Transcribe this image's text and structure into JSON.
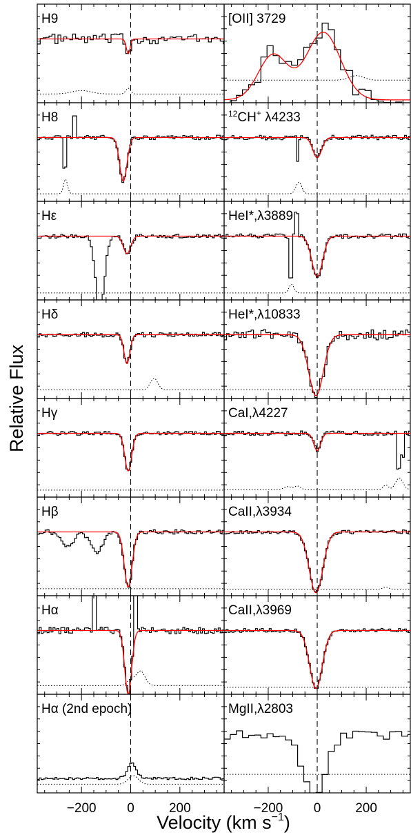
{
  "figure": {
    "ylabel": "Relative Flux",
    "xlabel": "Velocity (km s",
    "xlabel_sup": "−1",
    "xlabel_close": ")"
  },
  "chart_data": {
    "type": "line",
    "layout": "8 rows x 2 columns of stacked spectral panels sharing the velocity axis",
    "xlim": [
      -380,
      380
    ],
    "xticks": [
      -200,
      0,
      200
    ],
    "xtick_labels": [
      "−200",
      "0",
      "200"
    ],
    "grid": false,
    "zero_velocity_marker": "vertical dashed line at 0 km/s",
    "colors": {
      "data": "#000000",
      "fit": "#ff0000",
      "error": "#000000"
    },
    "panels": [
      {
        "key": "h9",
        "label": "H9",
        "sub": "",
        "rest": "",
        "ylim": [
          -0.1,
          1.6
        ],
        "continuum": 1.0,
        "absorption": [
          {
            "v": -10,
            "depth": 0.25,
            "sigma": 8
          }
        ],
        "fit": true,
        "error_level": 0.05,
        "error_bumps": [
          {
            "v": -200,
            "h": 0.06,
            "s": 40
          },
          {
            "v": -10,
            "h": 0.1,
            "s": 10
          }
        ],
        "noise": 0.18,
        "binw": 12
      },
      {
        "key": "oii",
        "label": "[OII] 3729",
        "sub": "",
        "rest": "",
        "ylim": [
          -0.05,
          1.7
        ],
        "continuum": 0.0,
        "emission": [
          {
            "v": -180,
            "h": 0.8,
            "sigma": 60
          },
          {
            "v": 25,
            "h": 1.2,
            "sigma": 70
          }
        ],
        "fit": true,
        "error_level": 0.35,
        "error_bumps": [
          {
            "v": 160,
            "h": 0.08,
            "s": 30
          }
        ],
        "noise": 0.35,
        "binw": 25
      },
      {
        "key": "h8",
        "label": "H8",
        "sub": "",
        "rest": "",
        "ylim": [
          -0.1,
          1.6
        ],
        "continuum": 1.0,
        "absorption": [
          {
            "v": -30,
            "depth": 0.75,
            "sigma": 15
          }
        ],
        "fit": true,
        "error_level": 0.03,
        "error_bumps": [
          {
            "v": -265,
            "h": 0.25,
            "s": 8
          }
        ],
        "spikes": [
          {
            "v": -265,
            "dv": -0.5
          },
          {
            "v": -230,
            "dv": 0.35
          }
        ],
        "noise": 0.08,
        "binw": 8
      },
      {
        "key": "ch",
        "label": "CH",
        "sup": "12",
        "sup2": "+",
        "rest": " λ4233",
        "ylim": [
          -0.1,
          1.6
        ],
        "continuum": 1.0,
        "absorption": [
          {
            "v": 0,
            "depth": 0.35,
            "sigma": 18
          }
        ],
        "fit": true,
        "error_level": 0.03,
        "error_bumps": [
          {
            "v": -75,
            "h": 0.2,
            "s": 12
          }
        ],
        "spikes": [
          {
            "v": -80,
            "dv": -0.4
          }
        ],
        "noise": 0.08,
        "binw": 8
      },
      {
        "key": "heps",
        "label": "Hε",
        "sub": "",
        "rest": "",
        "ylim": [
          -0.1,
          1.6
        ],
        "continuum": 1.0,
        "absorption": [
          {
            "v": -15,
            "depth": 0.3,
            "sigma": 15
          }
        ],
        "fit": true,
        "error_level": 0.02,
        "error_bumps": [],
        "data_absorption": [
          {
            "v": -125,
            "depth": 1.3,
            "sigma": 18
          }
        ],
        "noise": 0.07,
        "binw": 8
      },
      {
        "key": "he3889",
        "label": "HeI*,λ3889",
        "sub": "",
        "rest": "",
        "ylim": [
          -0.1,
          1.6
        ],
        "continuum": 1.0,
        "absorption": [
          {
            "v": 0,
            "depth": 0.7,
            "sigma": 22
          }
        ],
        "fit": true,
        "error_level": 0.02,
        "error_bumps": [
          {
            "v": -105,
            "h": 0.15,
            "s": 10
          }
        ],
        "spikes": [
          {
            "v": -105,
            "dv": -0.7
          },
          {
            "v": -85,
            "dv": 0.4
          }
        ],
        "noise": 0.08,
        "binw": 8
      },
      {
        "key": "hdel",
        "label": "Hδ",
        "sub": "",
        "rest": "",
        "ylim": [
          -0.1,
          1.6
        ],
        "continuum": 1.0,
        "absorption": [
          {
            "v": -15,
            "depth": 0.5,
            "sigma": 12
          }
        ],
        "fit": true,
        "error_level": 0.05,
        "error_bumps": [
          {
            "v": 95,
            "h": 0.2,
            "s": 15
          }
        ],
        "noise": 0.08,
        "binw": 8
      },
      {
        "key": "he10833",
        "label": "HeI*,λ10833",
        "sub": "",
        "rest": "",
        "ylim": [
          -0.1,
          1.6
        ],
        "continuum": 1.0,
        "absorption": [
          {
            "v": -5,
            "depth": 1.05,
            "sigma": 30
          }
        ],
        "fit": true,
        "error_level": 0.05,
        "error_bumps": [],
        "noise": 0.18,
        "binw": 10
      },
      {
        "key": "hgam",
        "label": "Hγ",
        "sub": "",
        "rest": "",
        "ylim": [
          -0.1,
          1.6
        ],
        "continuum": 1.0,
        "absorption": [
          {
            "v": -10,
            "depth": 0.65,
            "sigma": 14
          }
        ],
        "fit": true,
        "error_level": 0.02,
        "error_bumps": [],
        "noise": 0.07,
        "binw": 8
      },
      {
        "key": "cai",
        "label": "CaI,λ4227",
        "sub": "",
        "rest": "",
        "ylim": [
          -0.1,
          1.6
        ],
        "continuum": 1.0,
        "absorption": [
          {
            "v": 0,
            "depth": 0.3,
            "sigma": 14
          }
        ],
        "fit": true,
        "error_level": 0.03,
        "error_bumps": [
          {
            "v": -120,
            "h": 0.05,
            "s": 15
          },
          {
            "v": -80,
            "h": 0.06,
            "s": 12
          },
          {
            "v": 280,
            "h": 0.08,
            "s": 10
          },
          {
            "v": 335,
            "h": 0.2,
            "s": 15
          }
        ],
        "spikes": [
          {
            "v": 330,
            "dv": -0.6
          },
          {
            "v": 350,
            "dv": -0.4
          }
        ],
        "noise": 0.08,
        "binw": 8
      },
      {
        "key": "hbet",
        "label": "Hβ",
        "sub": "",
        "rest": "",
        "ylim": [
          -0.1,
          1.6
        ],
        "continuum": 1.0,
        "absorption": [
          {
            "v": -10,
            "depth": 0.95,
            "sigma": 16
          }
        ],
        "fit": true,
        "error_level": 0.02,
        "error_bumps": [],
        "data_dips": [
          {
            "v": -255,
            "depth": 0.25,
            "s": 25
          },
          {
            "v": -140,
            "depth": 0.35,
            "s": 25
          }
        ],
        "noise": 0.08,
        "binw": 8
      },
      {
        "key": "caii3934",
        "label": "CaII,λ3934",
        "sub": "",
        "rest": "",
        "ylim": [
          -0.1,
          1.6
        ],
        "continuum": 1.0,
        "absorption": [
          {
            "v": -5,
            "depth": 1.05,
            "sigma": 28
          }
        ],
        "fit": true,
        "error_level": 0.01,
        "error_bumps": [
          {
            "v": 280,
            "h": 0.04,
            "s": 12
          }
        ],
        "noise": 0.07,
        "binw": 8
      },
      {
        "key": "halp",
        "label": "Hα",
        "sub": "",
        "rest": "",
        "ylim": [
          -0.1,
          1.6
        ],
        "continuum": 1.0,
        "absorption": [
          {
            "v": -10,
            "depth": 1.1,
            "sigma": 14
          }
        ],
        "fit": true,
        "error_level": 0.05,
        "error_bumps": [
          {
            "v": 0,
            "h": 0.1,
            "s": 15
          },
          {
            "v": 40,
            "h": 0.25,
            "s": 18
          }
        ],
        "spikes": [
          {
            "v": -150,
            "dv": 0.7
          },
          {
            "v": 20,
            "dv": 1.2
          }
        ],
        "noise": 0.12,
        "binw": 8
      },
      {
        "key": "caii3969",
        "label": "CaII,λ3969",
        "sub": "",
        "rest": "",
        "ylim": [
          -0.1,
          1.6
        ],
        "continuum": 1.0,
        "absorption": [
          {
            "v": -5,
            "depth": 1.0,
            "sigma": 26
          }
        ],
        "fit": true,
        "error_level": 0.02,
        "error_bumps": [],
        "noise": 0.07,
        "binw": 8
      },
      {
        "key": "halp2",
        "label": "Hα (2nd epoch)",
        "sub": "",
        "rest": "",
        "ylim": [
          -0.1,
          1.6
        ],
        "continuum": 0.15,
        "emission": [
          {
            "v": 5,
            "h": 0.25,
            "sigma": 18
          }
        ],
        "fit": false,
        "error_level": 0.05,
        "error_bumps": [
          {
            "v": 10,
            "h": 0.15,
            "s": 20
          }
        ],
        "noise": 0.04,
        "binw": 8
      },
      {
        "key": "mgii",
        "label": "MgII,λ2803",
        "sub": "",
        "rest": "",
        "ylim": [
          -0.1,
          1.6
        ],
        "continuum": 0.9,
        "absorption": [
          {
            "v": -10,
            "depth": 1.1,
            "sigma": 45
          }
        ],
        "fit": false,
        "error_level": 0.22,
        "error_bumps": [],
        "noise": 0.15,
        "binw": 25
      }
    ]
  }
}
